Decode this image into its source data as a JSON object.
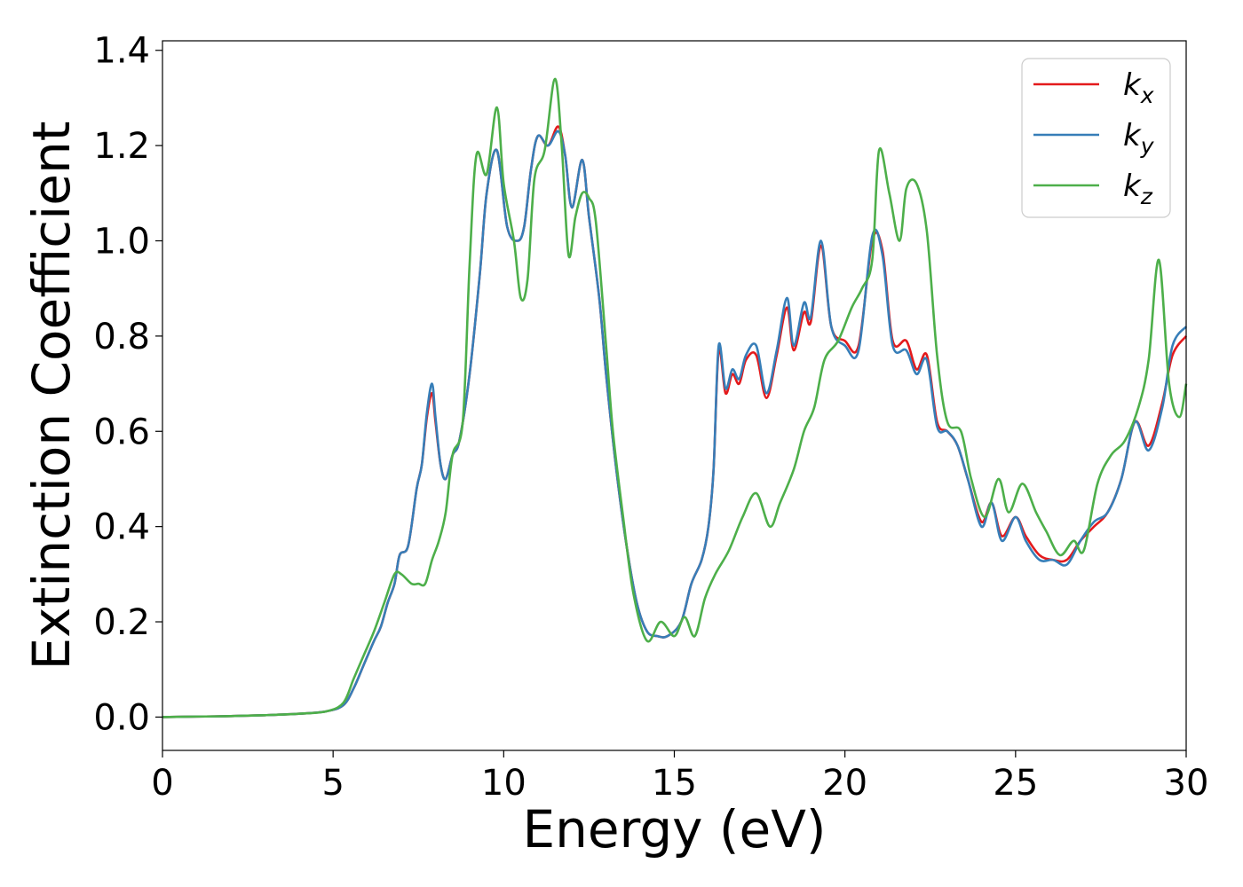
{
  "chart_data": {
    "type": "line",
    "title": "",
    "xlabel": "Energy (eV)",
    "ylabel": "Extinction Coefficient",
    "xlim": [
      0,
      30
    ],
    "ylim": [
      -0.07,
      1.42
    ],
    "xticks": [
      0,
      5,
      10,
      15,
      20,
      25,
      30
    ],
    "yticks": [
      0.0,
      0.2,
      0.4,
      0.6,
      0.8,
      1.0,
      1.2,
      1.4
    ],
    "xtick_labels": [
      "0",
      "5",
      "10",
      "15",
      "20",
      "25",
      "30"
    ],
    "ytick_labels": [
      "0.0",
      "0.2",
      "0.4",
      "0.6",
      "0.8",
      "1.0",
      "1.2",
      "1.4"
    ],
    "grid": false,
    "legend_position": "top-right",
    "series": [
      {
        "name": "k_x",
        "label_base": "k",
        "label_sub": "x",
        "color": "#e41a1c",
        "points": [
          [
            0,
            0
          ],
          [
            1,
            0.001
          ],
          [
            2,
            0.002
          ],
          [
            3,
            0.004
          ],
          [
            4,
            0.007
          ],
          [
            4.8,
            0.012
          ],
          [
            5.3,
            0.025
          ],
          [
            5.6,
            0.06
          ],
          [
            5.9,
            0.11
          ],
          [
            6.2,
            0.16
          ],
          [
            6.4,
            0.19
          ],
          [
            6.6,
            0.24
          ],
          [
            6.8,
            0.28
          ],
          [
            6.95,
            0.34
          ],
          [
            7.2,
            0.36
          ],
          [
            7.45,
            0.48
          ],
          [
            7.6,
            0.53
          ],
          [
            7.75,
            0.63
          ],
          [
            7.9,
            0.68
          ],
          [
            8.0,
            0.62
          ],
          [
            8.15,
            0.53
          ],
          [
            8.3,
            0.5
          ],
          [
            8.5,
            0.55
          ],
          [
            8.7,
            0.58
          ],
          [
            9.0,
            0.72
          ],
          [
            9.3,
            0.93
          ],
          [
            9.5,
            1.1
          ],
          [
            9.8,
            1.19
          ],
          [
            10.1,
            1.03
          ],
          [
            10.4,
            1.0
          ],
          [
            10.6,
            1.03
          ],
          [
            10.8,
            1.15
          ],
          [
            11.0,
            1.22
          ],
          [
            11.3,
            1.2
          ],
          [
            11.6,
            1.24
          ],
          [
            11.8,
            1.18
          ],
          [
            12.0,
            1.07
          ],
          [
            12.3,
            1.17
          ],
          [
            12.5,
            1.05
          ],
          [
            12.8,
            0.88
          ],
          [
            13.0,
            0.72
          ],
          [
            13.3,
            0.52
          ],
          [
            13.6,
            0.36
          ],
          [
            13.9,
            0.24
          ],
          [
            14.2,
            0.18
          ],
          [
            14.5,
            0.17
          ],
          [
            14.8,
            0.17
          ],
          [
            15.2,
            0.2
          ],
          [
            15.5,
            0.28
          ],
          [
            15.8,
            0.33
          ],
          [
            16.0,
            0.4
          ],
          [
            16.15,
            0.52
          ],
          [
            16.3,
            0.77
          ],
          [
            16.5,
            0.68
          ],
          [
            16.7,
            0.72
          ],
          [
            16.9,
            0.7
          ],
          [
            17.1,
            0.75
          ],
          [
            17.4,
            0.76
          ],
          [
            17.7,
            0.67
          ],
          [
            18.0,
            0.76
          ],
          [
            18.3,
            0.86
          ],
          [
            18.5,
            0.77
          ],
          [
            18.8,
            0.85
          ],
          [
            19.0,
            0.83
          ],
          [
            19.3,
            0.99
          ],
          [
            19.6,
            0.82
          ],
          [
            20.0,
            0.79
          ],
          [
            20.4,
            0.78
          ],
          [
            20.8,
            1.0
          ],
          [
            21.1,
            0.98
          ],
          [
            21.4,
            0.79
          ],
          [
            21.8,
            0.79
          ],
          [
            22.1,
            0.73
          ],
          [
            22.4,
            0.76
          ],
          [
            22.7,
            0.62
          ],
          [
            23.0,
            0.6
          ],
          [
            23.3,
            0.57
          ],
          [
            23.6,
            0.5
          ],
          [
            24.0,
            0.41
          ],
          [
            24.3,
            0.45
          ],
          [
            24.6,
            0.38
          ],
          [
            25.0,
            0.42
          ],
          [
            25.3,
            0.38
          ],
          [
            25.7,
            0.34
          ],
          [
            26.1,
            0.33
          ],
          [
            26.5,
            0.33
          ],
          [
            26.9,
            0.37
          ],
          [
            27.3,
            0.4
          ],
          [
            27.7,
            0.43
          ],
          [
            28.1,
            0.5
          ],
          [
            28.5,
            0.62
          ],
          [
            28.9,
            0.57
          ],
          [
            29.3,
            0.66
          ],
          [
            29.6,
            0.76
          ],
          [
            30.0,
            0.8
          ]
        ]
      },
      {
        "name": "k_y",
        "label_base": "k",
        "label_sub": "y",
        "color": "#377eb8",
        "points": [
          [
            0,
            0
          ],
          [
            1,
            0.001
          ],
          [
            2,
            0.002
          ],
          [
            3,
            0.004
          ],
          [
            4,
            0.007
          ],
          [
            4.8,
            0.012
          ],
          [
            5.3,
            0.025
          ],
          [
            5.6,
            0.06
          ],
          [
            5.9,
            0.11
          ],
          [
            6.2,
            0.16
          ],
          [
            6.4,
            0.19
          ],
          [
            6.6,
            0.24
          ],
          [
            6.8,
            0.28
          ],
          [
            6.95,
            0.34
          ],
          [
            7.2,
            0.36
          ],
          [
            7.45,
            0.48
          ],
          [
            7.6,
            0.53
          ],
          [
            7.75,
            0.64
          ],
          [
            7.9,
            0.7
          ],
          [
            8.0,
            0.63
          ],
          [
            8.15,
            0.53
          ],
          [
            8.3,
            0.5
          ],
          [
            8.5,
            0.55
          ],
          [
            8.7,
            0.58
          ],
          [
            9.0,
            0.72
          ],
          [
            9.3,
            0.93
          ],
          [
            9.5,
            1.1
          ],
          [
            9.8,
            1.19
          ],
          [
            10.1,
            1.03
          ],
          [
            10.4,
            1.0
          ],
          [
            10.6,
            1.03
          ],
          [
            10.8,
            1.15
          ],
          [
            11.0,
            1.22
          ],
          [
            11.3,
            1.2
          ],
          [
            11.6,
            1.23
          ],
          [
            11.8,
            1.18
          ],
          [
            12.0,
            1.07
          ],
          [
            12.3,
            1.17
          ],
          [
            12.5,
            1.05
          ],
          [
            12.8,
            0.88
          ],
          [
            13.0,
            0.72
          ],
          [
            13.3,
            0.52
          ],
          [
            13.6,
            0.36
          ],
          [
            13.9,
            0.24
          ],
          [
            14.2,
            0.18
          ],
          [
            14.5,
            0.17
          ],
          [
            14.8,
            0.17
          ],
          [
            15.2,
            0.2
          ],
          [
            15.5,
            0.28
          ],
          [
            15.8,
            0.33
          ],
          [
            16.0,
            0.4
          ],
          [
            16.15,
            0.52
          ],
          [
            16.3,
            0.78
          ],
          [
            16.5,
            0.69
          ],
          [
            16.7,
            0.73
          ],
          [
            16.9,
            0.71
          ],
          [
            17.1,
            0.76
          ],
          [
            17.4,
            0.78
          ],
          [
            17.7,
            0.68
          ],
          [
            18.0,
            0.77
          ],
          [
            18.3,
            0.88
          ],
          [
            18.5,
            0.78
          ],
          [
            18.8,
            0.87
          ],
          [
            19.0,
            0.84
          ],
          [
            19.3,
            1.0
          ],
          [
            19.6,
            0.82
          ],
          [
            20.0,
            0.78
          ],
          [
            20.4,
            0.77
          ],
          [
            20.8,
            1.01
          ],
          [
            21.1,
            0.97
          ],
          [
            21.4,
            0.78
          ],
          [
            21.8,
            0.77
          ],
          [
            22.1,
            0.72
          ],
          [
            22.4,
            0.75
          ],
          [
            22.7,
            0.61
          ],
          [
            23.0,
            0.6
          ],
          [
            23.3,
            0.57
          ],
          [
            23.6,
            0.5
          ],
          [
            24.0,
            0.4
          ],
          [
            24.3,
            0.45
          ],
          [
            24.6,
            0.37
          ],
          [
            25.0,
            0.42
          ],
          [
            25.3,
            0.37
          ],
          [
            25.7,
            0.33
          ],
          [
            26.1,
            0.33
          ],
          [
            26.5,
            0.32
          ],
          [
            26.9,
            0.37
          ],
          [
            27.3,
            0.41
          ],
          [
            27.7,
            0.43
          ],
          [
            28.1,
            0.5
          ],
          [
            28.5,
            0.62
          ],
          [
            28.9,
            0.56
          ],
          [
            29.3,
            0.65
          ],
          [
            29.6,
            0.78
          ],
          [
            30.0,
            0.82
          ]
        ]
      },
      {
        "name": "k_z",
        "label_base": "k",
        "label_sub": "z",
        "color": "#4daf4a",
        "points": [
          [
            0,
            0
          ],
          [
            1,
            0.001
          ],
          [
            2,
            0.002
          ],
          [
            3,
            0.004
          ],
          [
            4,
            0.007
          ],
          [
            4.8,
            0.012
          ],
          [
            5.3,
            0.03
          ],
          [
            5.6,
            0.08
          ],
          [
            5.9,
            0.13
          ],
          [
            6.2,
            0.18
          ],
          [
            6.5,
            0.24
          ],
          [
            6.8,
            0.3
          ],
          [
            7.0,
            0.3
          ],
          [
            7.3,
            0.28
          ],
          [
            7.5,
            0.28
          ],
          [
            7.7,
            0.28
          ],
          [
            7.9,
            0.33
          ],
          [
            8.1,
            0.37
          ],
          [
            8.3,
            0.43
          ],
          [
            8.5,
            0.55
          ],
          [
            8.8,
            0.62
          ],
          [
            9.0,
            0.95
          ],
          [
            9.2,
            1.18
          ],
          [
            9.5,
            1.14
          ],
          [
            9.8,
            1.28
          ],
          [
            10.0,
            1.12
          ],
          [
            10.3,
            1.0
          ],
          [
            10.5,
            0.88
          ],
          [
            10.7,
            0.92
          ],
          [
            10.9,
            1.13
          ],
          [
            11.2,
            1.19
          ],
          [
            11.5,
            1.34
          ],
          [
            11.7,
            1.2
          ],
          [
            11.9,
            0.97
          ],
          [
            12.1,
            1.05
          ],
          [
            12.3,
            1.1
          ],
          [
            12.5,
            1.09
          ],
          [
            12.7,
            1.04
          ],
          [
            13.0,
            0.78
          ],
          [
            13.2,
            0.6
          ],
          [
            13.5,
            0.42
          ],
          [
            13.8,
            0.26
          ],
          [
            14.2,
            0.16
          ],
          [
            14.6,
            0.2
          ],
          [
            15.0,
            0.17
          ],
          [
            15.3,
            0.21
          ],
          [
            15.6,
            0.17
          ],
          [
            15.9,
            0.25
          ],
          [
            16.2,
            0.3
          ],
          [
            16.6,
            0.35
          ],
          [
            17.0,
            0.42
          ],
          [
            17.4,
            0.47
          ],
          [
            17.8,
            0.4
          ],
          [
            18.1,
            0.45
          ],
          [
            18.5,
            0.52
          ],
          [
            18.8,
            0.6
          ],
          [
            19.1,
            0.65
          ],
          [
            19.4,
            0.75
          ],
          [
            19.8,
            0.79
          ],
          [
            20.2,
            0.86
          ],
          [
            20.5,
            0.9
          ],
          [
            20.8,
            0.96
          ],
          [
            21.0,
            1.19
          ],
          [
            21.3,
            1.1
          ],
          [
            21.6,
            1.0
          ],
          [
            21.8,
            1.11
          ],
          [
            22.1,
            1.12
          ],
          [
            22.4,
            1.02
          ],
          [
            22.7,
            0.76
          ],
          [
            23.0,
            0.62
          ],
          [
            23.4,
            0.6
          ],
          [
            23.7,
            0.5
          ],
          [
            24.1,
            0.42
          ],
          [
            24.5,
            0.5
          ],
          [
            24.8,
            0.43
          ],
          [
            25.2,
            0.49
          ],
          [
            25.6,
            0.43
          ],
          [
            25.9,
            0.39
          ],
          [
            26.3,
            0.34
          ],
          [
            26.7,
            0.37
          ],
          [
            27.0,
            0.35
          ],
          [
            27.4,
            0.49
          ],
          [
            27.8,
            0.55
          ],
          [
            28.2,
            0.58
          ],
          [
            28.6,
            0.65
          ],
          [
            28.9,
            0.75
          ],
          [
            29.2,
            0.96
          ],
          [
            29.5,
            0.7
          ],
          [
            29.8,
            0.63
          ],
          [
            30.0,
            0.7
          ]
        ]
      }
    ]
  }
}
